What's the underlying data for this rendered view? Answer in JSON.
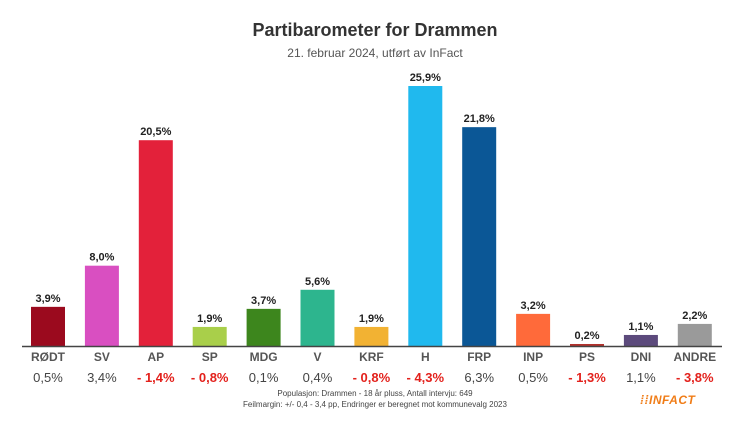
{
  "chart_data": {
    "type": "bar",
    "title": "Partibarometer for Drammen",
    "subtitle": "21. februar 2024, utført av InFact",
    "categories": [
      "RØDT",
      "SV",
      "AP",
      "SP",
      "MDG",
      "V",
      "KRF",
      "H",
      "FRP",
      "INP",
      "PS",
      "DNI",
      "ANDRE"
    ],
    "values": [
      3.9,
      8.0,
      20.5,
      1.9,
      3.7,
      5.6,
      1.9,
      25.9,
      21.8,
      3.2,
      0.2,
      1.1,
      2.2
    ],
    "value_labels": [
      "3,9%",
      "8,0%",
      "20,5%",
      "1,9%",
      "3,7%",
      "5,6%",
      "1,9%",
      "25,9%",
      "21,8%",
      "3,2%",
      "0,2%",
      "1,1%",
      "2,2%"
    ],
    "changes": [
      0.5,
      3.4,
      -1.4,
      -0.8,
      0.1,
      0.4,
      -0.8,
      -4.3,
      6.3,
      0.5,
      -1.3,
      1.1,
      -3.8
    ],
    "change_labels": [
      "0,5%",
      "3,4%",
      "- 1,4%",
      "- 0,8%",
      "0,1%",
      "0,4%",
      "- 0,8%",
      "- 4,3%",
      "6,3%",
      "0,5%",
      "- 1,3%",
      "1,1%",
      "- 3,8%"
    ],
    "colors": [
      "#9b0a1e",
      "#d94fc1",
      "#e3213a",
      "#a9cf4a",
      "#3d861d",
      "#2db58e",
      "#f2b233",
      "#20b9ee",
      "#0b5796",
      "#ff6a3a",
      "#b3312c",
      "#5c4a7c",
      "#9a9a9a"
    ],
    "positive_color": "#444444",
    "negative_color": "#e3211c",
    "ylim": [
      0,
      26.5
    ],
    "grid": false
  },
  "footer": {
    "line1": "Populasjon: Drammen - 18 år pluss, Antall intervju: 649",
    "line2": "Feilmargin: +/- 0,4 - 3,4 pp, Endringer er beregnet mot kommunevalg 2023",
    "logo": "INFACT"
  }
}
